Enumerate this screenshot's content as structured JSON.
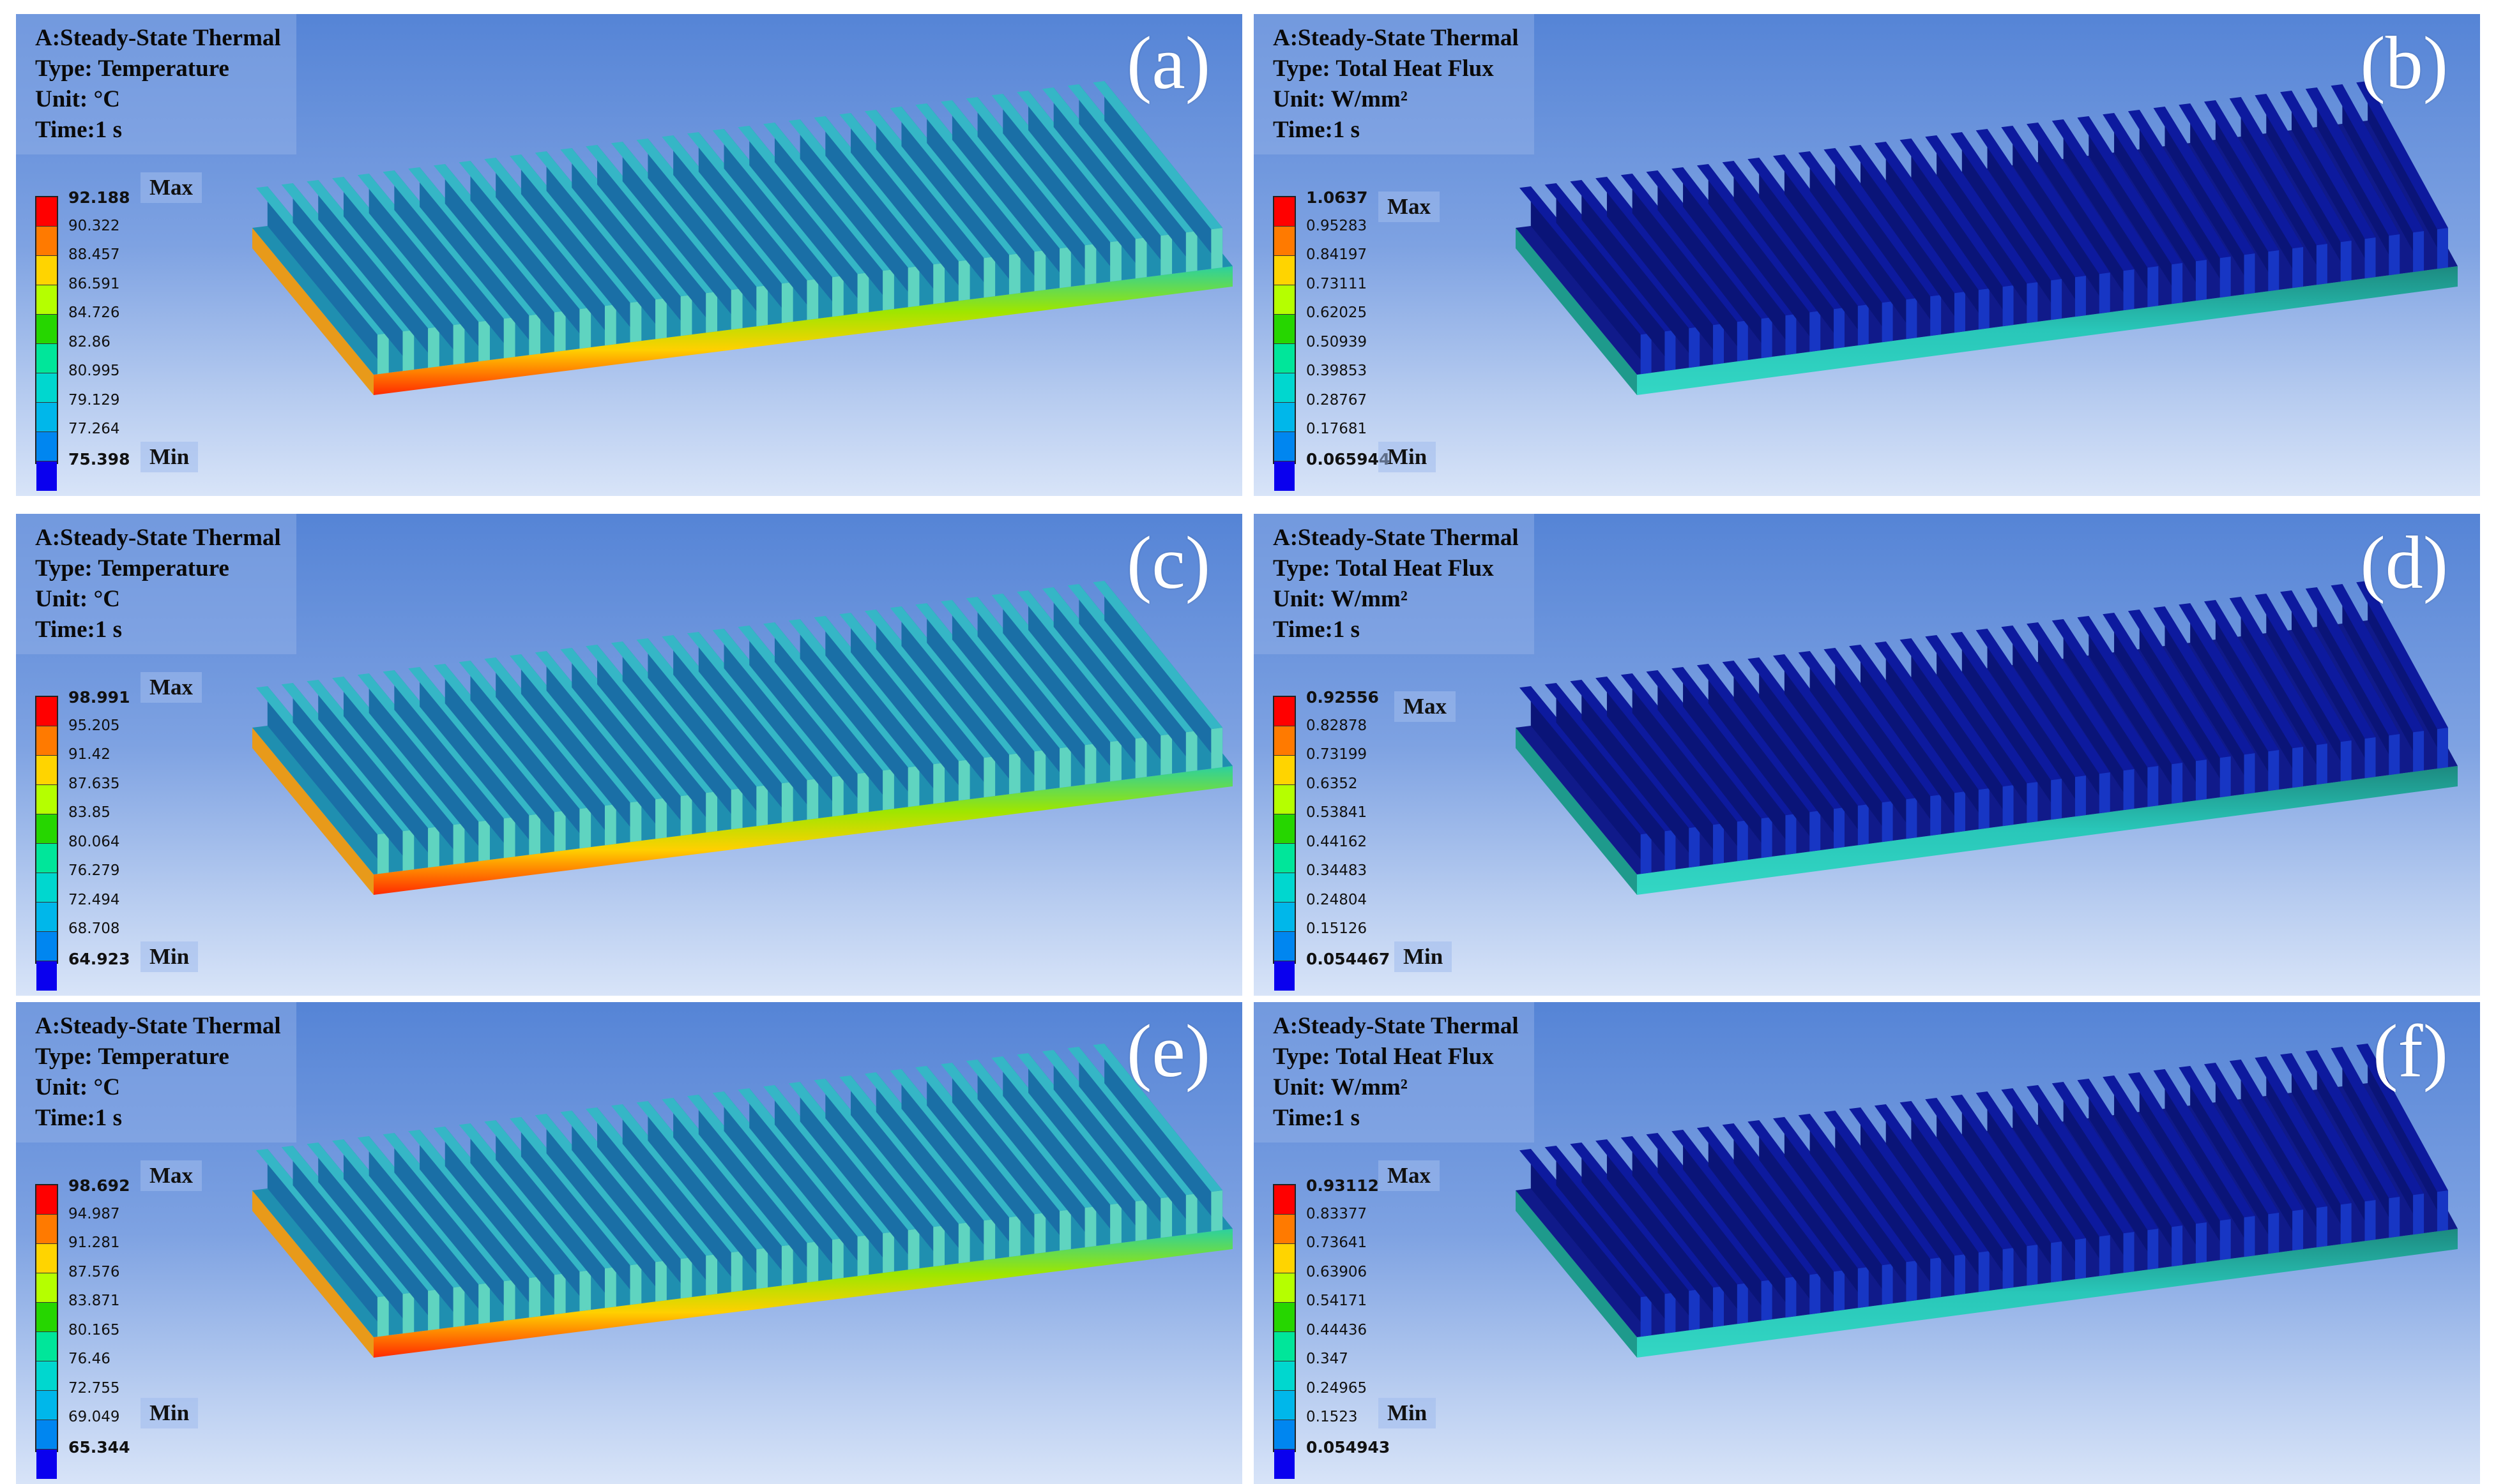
{
  "colors": {
    "scale": [
      "#ff0000",
      "#ff7a00",
      "#ffd400",
      "#b5ff00",
      "#26d600",
      "#00e69a",
      "#00d7cf",
      "#00b7ea",
      "#0086f0",
      "#0a00ee"
    ],
    "fin_temp": "#2ca8c4",
    "fin_flux": "#0e1d9c",
    "accent_text": "#ffffff"
  },
  "panels": [
    {
      "letter": "(a)",
      "header": [
        "A:Steady-State Thermal",
        "Type: Temperature",
        "Unit: °C",
        "Time:1 s"
      ],
      "legend": [
        "92.188",
        "90.322",
        "88.457",
        "86.591",
        "84.726",
        "82.86",
        "80.995",
        "79.129",
        "77.264",
        "75.398"
      ],
      "max_label": "Max",
      "min_label": "Min",
      "kind": "temperature"
    },
    {
      "letter": "(b)",
      "header": [
        "A:Steady-State Thermal",
        "Type: Total Heat Flux",
        "Unit: W/mm²",
        "Time:1 s"
      ],
      "legend": [
        "1.0637",
        "0.95283",
        "0.84197",
        "0.73111",
        "0.62025",
        "0.50939",
        "0.39853",
        "0.28767",
        "0.17681",
        "0.065944"
      ],
      "max_label": "Max",
      "min_label": "Min",
      "kind": "flux"
    },
    {
      "letter": "(c)",
      "header": [
        "A:Steady-State Thermal",
        "Type: Temperature",
        "Unit: °C",
        "Time:1 s"
      ],
      "legend": [
        "98.991",
        "95.205",
        "91.42",
        "87.635",
        "83.85",
        "80.064",
        "76.279",
        "72.494",
        "68.708",
        "64.923"
      ],
      "max_label": "Max",
      "min_label": "Min",
      "kind": "temperature"
    },
    {
      "letter": "(d)",
      "header": [
        "A:Steady-State Thermal",
        "Type: Total Heat Flux",
        "Unit: W/mm²",
        "Time:1 s"
      ],
      "legend": [
        "0.92556",
        "0.82878",
        "0.73199",
        "0.6352",
        "0.53841",
        "0.44162",
        "0.34483",
        "0.24804",
        "0.15126",
        "0.054467"
      ],
      "max_label": "Max",
      "min_label": "Min",
      "kind": "flux"
    },
    {
      "letter": "(e)",
      "header": [
        "A:Steady-State Thermal",
        "Type: Temperature",
        "Unit: °C",
        "Time:1 s"
      ],
      "legend": [
        "98.692",
        "94.987",
        "91.281",
        "87.576",
        "83.871",
        "80.165",
        "76.46",
        "72.755",
        "69.049",
        "65.344"
      ],
      "max_label": "Max",
      "min_label": "Min",
      "kind": "temperature"
    },
    {
      "letter": "(f)",
      "header": [
        "A:Steady-State Thermal",
        "Type: Total Heat Flux",
        "Unit: W/mm²",
        "Time:1 s"
      ],
      "legend": [
        "0.93112",
        "0.83377",
        "0.73641",
        "0.63906",
        "0.54171",
        "0.44436",
        "0.347",
        "0.24965",
        "0.1523",
        "0.054943"
      ],
      "max_label": "Max",
      "min_label": "Min",
      "kind": "flux"
    }
  ]
}
